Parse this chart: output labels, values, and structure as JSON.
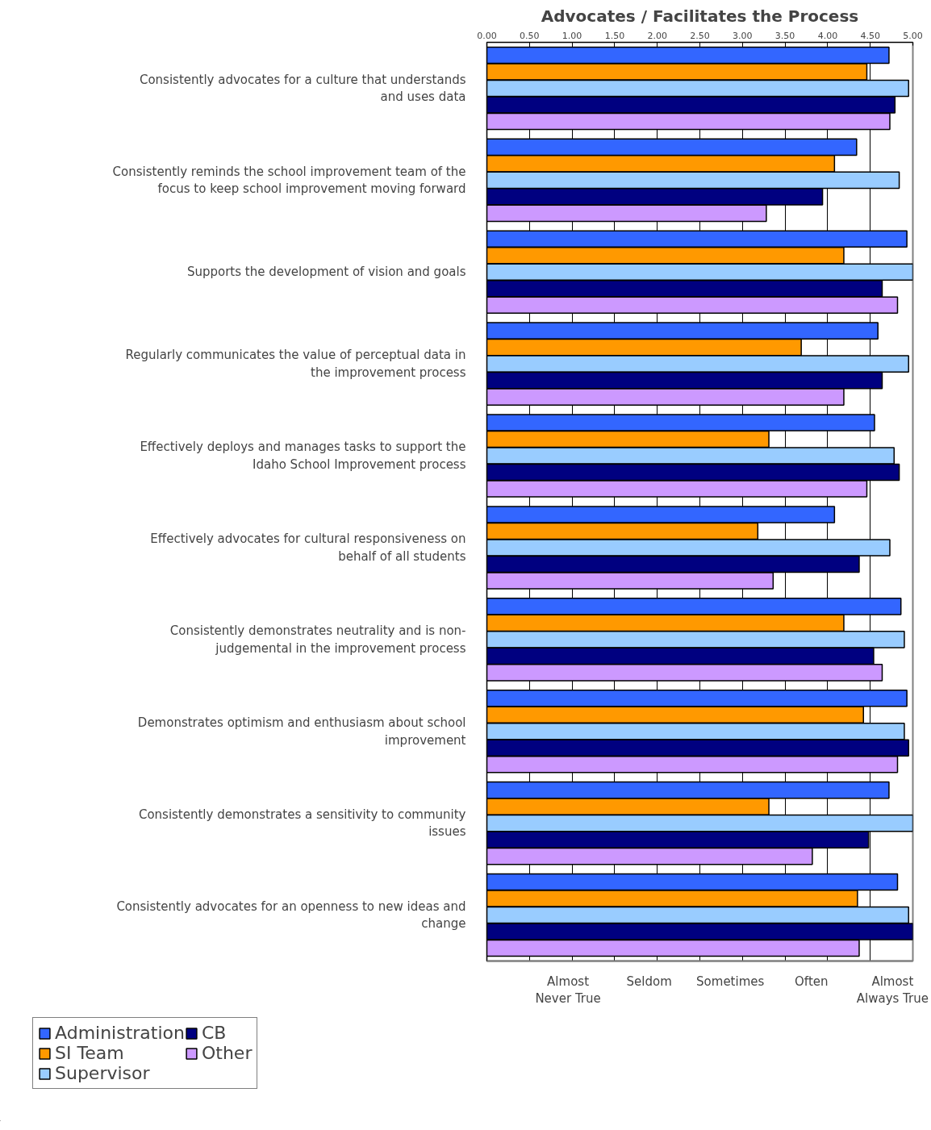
{
  "chart_data": {
    "type": "bar",
    "orientation": "horizontal",
    "title": "Advocates / Facilitates the Process",
    "categories": [
      "Consistently advocates for a culture that understands and uses data",
      "Consistently reminds the school improvement team of the focus to keep school improvement moving forward",
      "Supports the development of vision and goals",
      "Regularly communicates the value of perceptual data in the improvement process",
      "Effectively deploys and manages tasks to support the Idaho School Improvement process",
      "Effectively advocates for cultural responsiveness on behalf of all students",
      "Consistently demonstrates neutrality and is non-judgemental in the improvement process",
      "Demonstrates optimism and enthusiasm about school improvement",
      "Consistently demonstrates a sensitivity to community issues",
      "Consistently advocates for an openness to new ideas and change"
    ],
    "series": [
      {
        "name": "Administration",
        "color": "#3366ff",
        "values": [
          4.72,
          4.34,
          4.93,
          4.59,
          4.55,
          4.08,
          4.86,
          4.93,
          4.72,
          4.82
        ]
      },
      {
        "name": "SI Team",
        "color": "#ff9900",
        "values": [
          4.46,
          4.08,
          4.19,
          3.69,
          3.31,
          3.18,
          4.19,
          4.42,
          3.31,
          4.35
        ]
      },
      {
        "name": "Supervisor",
        "color": "#99ccff",
        "values": [
          4.95,
          4.84,
          5.0,
          4.95,
          4.78,
          4.73,
          4.9,
          4.9,
          5.0,
          4.95
        ]
      },
      {
        "name": "CB",
        "color": "#000080",
        "values": [
          4.79,
          3.94,
          4.64,
          4.64,
          4.84,
          4.37,
          4.54,
          4.95,
          4.48,
          5.0
        ]
      },
      {
        "name": "Other",
        "color": "#cc99ff",
        "values": [
          4.73,
          3.28,
          4.82,
          4.19,
          4.46,
          3.36,
          4.64,
          4.82,
          3.82,
          4.37
        ]
      }
    ],
    "xlim": [
      0,
      5
    ],
    "xticks": [
      {
        "value": 0,
        "label": "0.00"
      },
      {
        "value": 0.5,
        "label": "0.50"
      },
      {
        "value": 1,
        "label": "1.00"
      },
      {
        "value": 1.5,
        "label": "1.50"
      },
      {
        "value": 2,
        "label": "2.00"
      },
      {
        "value": 2.5,
        "label": "2.50"
      },
      {
        "value": 3,
        "label": "3.00"
      },
      {
        "value": 3.5,
        "label": "3.50"
      },
      {
        "value": 4,
        "label": "4.00"
      },
      {
        "value": 4.5,
        "label": "4.50"
      },
      {
        "value": 5,
        "label": "5.00"
      }
    ],
    "annotations": [
      "Almost\nNever True",
      "Seldom",
      "Sometimes",
      "Often",
      "Almost\nAlways True"
    ],
    "grid": "x",
    "legend": "bottom left"
  }
}
